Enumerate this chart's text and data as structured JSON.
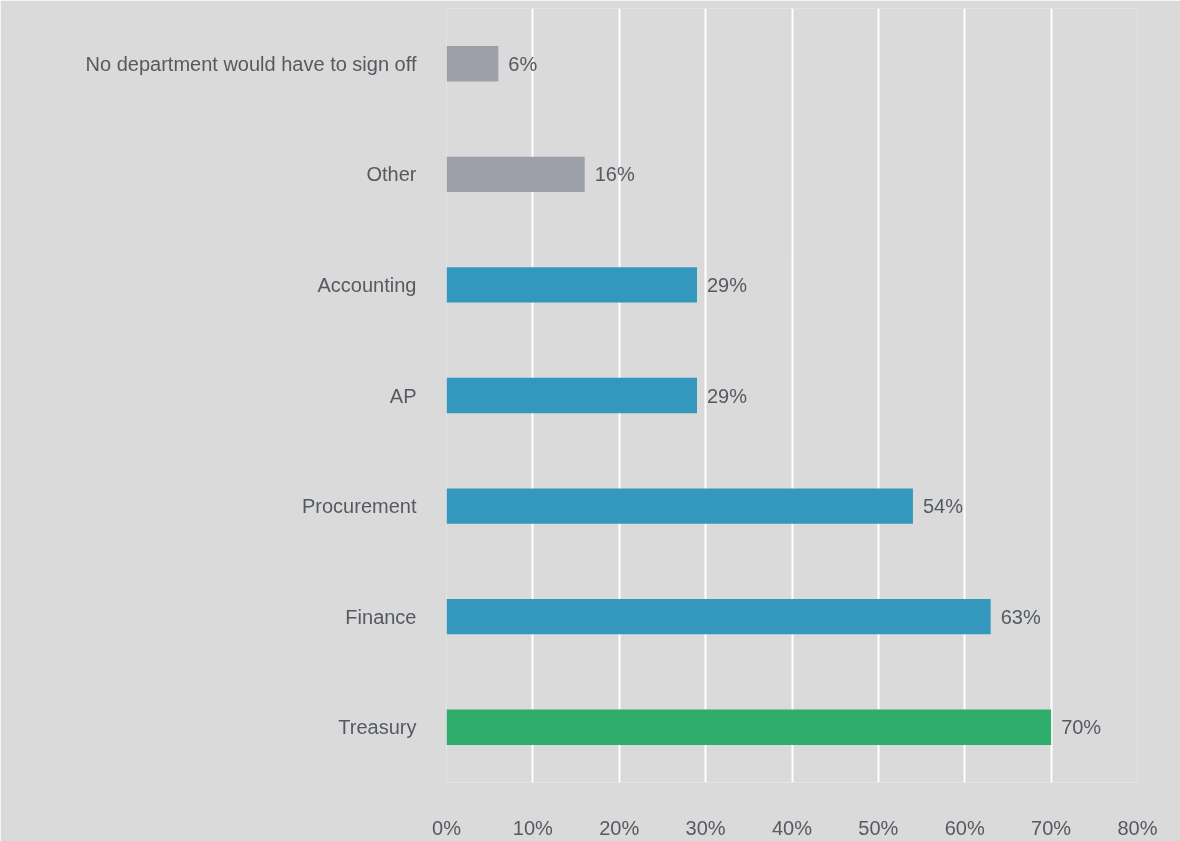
{
  "chart_data": {
    "type": "bar",
    "orientation": "horizontal",
    "categories": [
      "No department would have to sign off",
      "Other",
      "Accounting",
      "AP",
      "Procurement",
      "Finance",
      "Treasury"
    ],
    "values": [
      6,
      16,
      29,
      29,
      54,
      63,
      70
    ],
    "colors": [
      "#9da0a8",
      "#9da0a8",
      "#3497bd",
      "#3497bd",
      "#3497bd",
      "#3497bd",
      "#2fae6b"
    ],
    "value_labels": [
      "6%",
      "16%",
      "29%",
      "29%",
      "54%",
      "63%",
      "70%"
    ],
    "xlim": [
      0,
      80
    ],
    "xticks": [
      {
        "value": 0,
        "label": "0%"
      },
      {
        "value": 10,
        "label": "10%"
      },
      {
        "value": 20,
        "label": "20%"
      },
      {
        "value": 30,
        "label": "30%"
      },
      {
        "value": 40,
        "label": "40%"
      },
      {
        "value": 50,
        "label": "50%"
      },
      {
        "value": 60,
        "label": "60%"
      },
      {
        "value": 70,
        "label": "70%"
      },
      {
        "value": 80,
        "label": "80%"
      }
    ],
    "grid": "x"
  }
}
